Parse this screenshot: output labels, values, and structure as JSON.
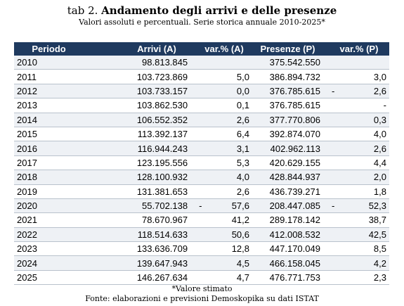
{
  "title": {
    "prefix": "tab 2.",
    "main": "Andamento degli arrivi e delle presenze"
  },
  "subtitle": "Valori assoluti e percentuali. Serie storica annuale 2010-2025*",
  "columns": [
    "Periodo",
    "Arrivi (A)",
    "var.% (A)",
    "Presenze (P)",
    "var.% (P)"
  ],
  "rows": [
    {
      "year": "2010",
      "arrivi": "98.813.845",
      "var_a_sign": "",
      "var_a": "",
      "presenze": "375.542.550",
      "var_p_sign": "",
      "var_p": ""
    },
    {
      "year": "2011",
      "arrivi": "103.723.869",
      "var_a_sign": "",
      "var_a": "5,0",
      "presenze": "386.894.732",
      "var_p_sign": "",
      "var_p": "3,0"
    },
    {
      "year": "2012",
      "arrivi": "103.733.157",
      "var_a_sign": "",
      "var_a": "0,0",
      "presenze": "376.785.615",
      "var_p_sign": "-",
      "var_p": "2,6"
    },
    {
      "year": "2013",
      "arrivi": "103.862.530",
      "var_a_sign": "",
      "var_a": "0,1",
      "presenze": "376.785.615",
      "var_p_sign": "",
      "var_p": "-"
    },
    {
      "year": "2014",
      "arrivi": "106.552.352",
      "var_a_sign": "",
      "var_a": "2,6",
      "presenze": "377.770.806",
      "var_p_sign": "",
      "var_p": "0,3"
    },
    {
      "year": "2015",
      "arrivi": "113.392.137",
      "var_a_sign": "",
      "var_a": "6,4",
      "presenze": "392.874.070",
      "var_p_sign": "",
      "var_p": "4,0"
    },
    {
      "year": "2016",
      "arrivi": "116.944.243",
      "var_a_sign": "",
      "var_a": "3,1",
      "presenze": "402.962.113",
      "var_p_sign": "",
      "var_p": "2,6"
    },
    {
      "year": "2017",
      "arrivi": "123.195.556",
      "var_a_sign": "",
      "var_a": "5,3",
      "presenze": "420.629.155",
      "var_p_sign": "",
      "var_p": "4,4"
    },
    {
      "year": "2018",
      "arrivi": "128.100.932",
      "var_a_sign": "",
      "var_a": "4,0",
      "presenze": "428.844.937",
      "var_p_sign": "",
      "var_p": "2,0"
    },
    {
      "year": "2019",
      "arrivi": "131.381.653",
      "var_a_sign": "",
      "var_a": "2,6",
      "presenze": "436.739.271",
      "var_p_sign": "",
      "var_p": "1,8"
    },
    {
      "year": "2020",
      "arrivi": "55.702.138",
      "var_a_sign": "-",
      "var_a": "57,6",
      "presenze": "208.447.085",
      "var_p_sign": "-",
      "var_p": "52,3"
    },
    {
      "year": "2021",
      "arrivi": "78.670.967",
      "var_a_sign": "",
      "var_a": "41,2",
      "presenze": "289.178.142",
      "var_p_sign": "",
      "var_p": "38,7"
    },
    {
      "year": "2022",
      "arrivi": "118.514.633",
      "var_a_sign": "",
      "var_a": "50,6",
      "presenze": "412.008.532",
      "var_p_sign": "",
      "var_p": "42,5"
    },
    {
      "year": "2023",
      "arrivi": "133.636.709",
      "var_a_sign": "",
      "var_a": "12,8",
      "presenze": "447.170.049",
      "var_p_sign": "",
      "var_p": "8,5"
    },
    {
      "year": "2024",
      "arrivi": "139.647.943",
      "var_a_sign": "",
      "var_a": "4,5",
      "presenze": "466.158.045",
      "var_p_sign": "",
      "var_p": "4,2"
    },
    {
      "year": "2025",
      "arrivi": "146.267.634",
      "var_a_sign": "",
      "var_a": "4,7",
      "presenze": "476.771.753",
      "var_p_sign": "",
      "var_p": "2,3"
    }
  ],
  "footnote": "*Valore stimato",
  "source": "Fonte: elaborazioni e previsioni Demoskopika su dati ISTAT",
  "colors": {
    "header_bg": "#1f3a5f",
    "header_text": "#ffffff",
    "stripe": "#eef1f5",
    "rule": "#b9c2cc"
  }
}
